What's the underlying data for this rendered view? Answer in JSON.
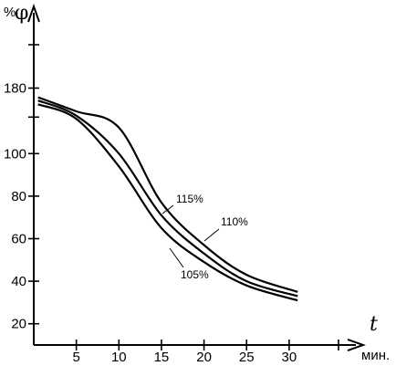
{
  "chart_data": {
    "type": "line",
    "y_axis": {
      "percent_symbol": "%",
      "symbol": "φ",
      "ticks": [
        20,
        40,
        60,
        80,
        100,
        180
      ],
      "ylim": [
        10,
        200
      ]
    },
    "x_axis": {
      "symbol": "t",
      "unit": "мин.",
      "ticks": [
        5,
        10,
        15,
        20,
        25,
        30
      ],
      "xlim": [
        0,
        35
      ]
    },
    "grid": false,
    "series": [
      {
        "name": "115%",
        "x": [
          0.5,
          5,
          10,
          15,
          20,
          25,
          31
        ],
        "y": [
          163,
          137,
          107,
          77,
          57,
          43,
          35
        ]
      },
      {
        "name": "110%",
        "x": [
          0.5,
          5,
          10,
          15,
          20,
          25,
          31
        ],
        "y": [
          157,
          129,
          100,
          71,
          53,
          40,
          33
        ]
      },
      {
        "name": "105%",
        "x": [
          0.5,
          5,
          10,
          15,
          20,
          25,
          31
        ],
        "y": [
          150,
          123,
          94,
          65,
          49,
          38,
          31
        ]
      }
    ]
  }
}
